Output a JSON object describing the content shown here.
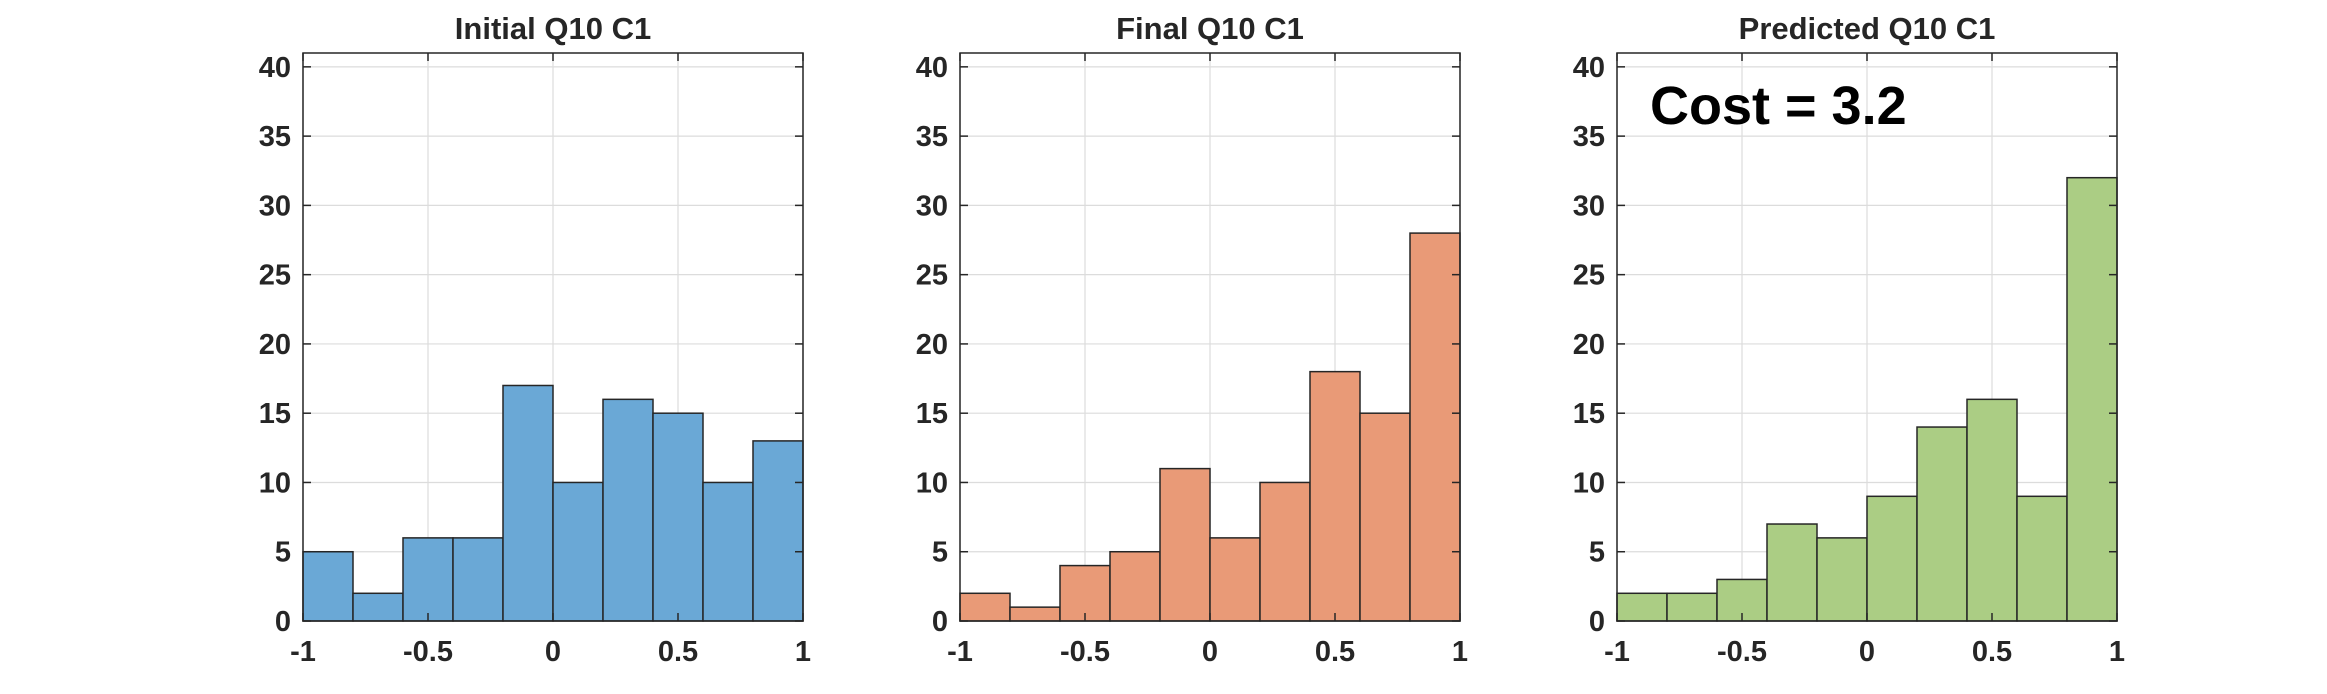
{
  "chart_data": [
    {
      "type": "bar",
      "title": "Initial Q10 C1",
      "bin_edges": [
        -1,
        -0.8,
        -0.6,
        -0.4,
        -0.2,
        0,
        0.2,
        0.4,
        0.6,
        0.8,
        1
      ],
      "values": [
        5,
        2,
        6,
        6,
        17,
        10,
        16,
        15,
        10,
        13
      ],
      "color": "#6aa8d6",
      "xlim": [
        -1,
        1
      ],
      "ylim": [
        0,
        41
      ],
      "xticks": [
        -1,
        -0.5,
        0,
        0.5,
        1
      ],
      "xtick_labels": [
        "-1",
        "-0.5",
        "0",
        "0.5",
        "1"
      ],
      "yticks": [
        0,
        5,
        10,
        15,
        20,
        25,
        30,
        35,
        40
      ],
      "ytick_labels": [
        "0",
        "5",
        "10",
        "15",
        "20",
        "25",
        "30",
        "35",
        "40"
      ],
      "grid": true,
      "annotation": ""
    },
    {
      "type": "bar",
      "title": "Final Q10 C1",
      "bin_edges": [
        -1,
        -0.8,
        -0.6,
        -0.4,
        -0.2,
        0,
        0.2,
        0.4,
        0.6,
        0.8,
        1
      ],
      "values": [
        2,
        1,
        4,
        5,
        11,
        6,
        10,
        18,
        15,
        28
      ],
      "color": "#e99a77",
      "xlim": [
        -1,
        1
      ],
      "ylim": [
        0,
        41
      ],
      "xticks": [
        -1,
        -0.5,
        0,
        0.5,
        1
      ],
      "xtick_labels": [
        "-1",
        "-0.5",
        "0",
        "0.5",
        "1"
      ],
      "yticks": [
        0,
        5,
        10,
        15,
        20,
        25,
        30,
        35,
        40
      ],
      "ytick_labels": [
        "0",
        "5",
        "10",
        "15",
        "20",
        "25",
        "30",
        "35",
        "40"
      ],
      "grid": true,
      "annotation": ""
    },
    {
      "type": "bar",
      "title": "Predicted Q10 C1",
      "bin_edges": [
        -1,
        -0.8,
        -0.6,
        -0.4,
        -0.2,
        0,
        0.2,
        0.4,
        0.6,
        0.8,
        1
      ],
      "values": [
        2,
        2,
        3,
        7,
        6,
        9,
        14,
        16,
        9,
        32
      ],
      "color": "#abcd84",
      "xlim": [
        -1,
        1
      ],
      "ylim": [
        0,
        41
      ],
      "xticks": [
        -1,
        -0.5,
        0,
        0.5,
        1
      ],
      "xtick_labels": [
        "-1",
        "-0.5",
        "0",
        "0.5",
        "1"
      ],
      "yticks": [
        0,
        5,
        10,
        15,
        20,
        25,
        30,
        35,
        40
      ],
      "ytick_labels": [
        "0",
        "5",
        "10",
        "15",
        "20",
        "25",
        "30",
        "35",
        "40"
      ],
      "grid": true,
      "annotation": "Cost = 3.2"
    }
  ]
}
